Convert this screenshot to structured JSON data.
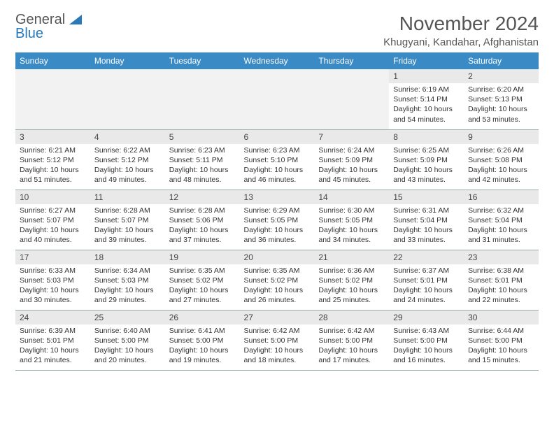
{
  "logo": {
    "word1": "General",
    "word2": "Blue"
  },
  "title": "November 2024",
  "location": "Khugyani, Kandahar, Afghanistan",
  "colors": {
    "header_bg": "#3a8ac6",
    "header_text": "#ffffff",
    "daynum_bg": "#e9e9e9",
    "border": "#99aaaa",
    "accent": "#2a7ab9"
  },
  "weekdays": [
    "Sunday",
    "Monday",
    "Tuesday",
    "Wednesday",
    "Thursday",
    "Friday",
    "Saturday"
  ],
  "weeks": [
    [
      {
        "empty": true
      },
      {
        "empty": true
      },
      {
        "empty": true
      },
      {
        "empty": true
      },
      {
        "empty": true
      },
      {
        "n": "1",
        "sr": "Sunrise: 6:19 AM",
        "ss": "Sunset: 5:14 PM",
        "dl": "Daylight: 10 hours and 54 minutes."
      },
      {
        "n": "2",
        "sr": "Sunrise: 6:20 AM",
        "ss": "Sunset: 5:13 PM",
        "dl": "Daylight: 10 hours and 53 minutes."
      }
    ],
    [
      {
        "n": "3",
        "sr": "Sunrise: 6:21 AM",
        "ss": "Sunset: 5:12 PM",
        "dl": "Daylight: 10 hours and 51 minutes."
      },
      {
        "n": "4",
        "sr": "Sunrise: 6:22 AM",
        "ss": "Sunset: 5:12 PM",
        "dl": "Daylight: 10 hours and 49 minutes."
      },
      {
        "n": "5",
        "sr": "Sunrise: 6:23 AM",
        "ss": "Sunset: 5:11 PM",
        "dl": "Daylight: 10 hours and 48 minutes."
      },
      {
        "n": "6",
        "sr": "Sunrise: 6:23 AM",
        "ss": "Sunset: 5:10 PM",
        "dl": "Daylight: 10 hours and 46 minutes."
      },
      {
        "n": "7",
        "sr": "Sunrise: 6:24 AM",
        "ss": "Sunset: 5:09 PM",
        "dl": "Daylight: 10 hours and 45 minutes."
      },
      {
        "n": "8",
        "sr": "Sunrise: 6:25 AM",
        "ss": "Sunset: 5:09 PM",
        "dl": "Daylight: 10 hours and 43 minutes."
      },
      {
        "n": "9",
        "sr": "Sunrise: 6:26 AM",
        "ss": "Sunset: 5:08 PM",
        "dl": "Daylight: 10 hours and 42 minutes."
      }
    ],
    [
      {
        "n": "10",
        "sr": "Sunrise: 6:27 AM",
        "ss": "Sunset: 5:07 PM",
        "dl": "Daylight: 10 hours and 40 minutes."
      },
      {
        "n": "11",
        "sr": "Sunrise: 6:28 AM",
        "ss": "Sunset: 5:07 PM",
        "dl": "Daylight: 10 hours and 39 minutes."
      },
      {
        "n": "12",
        "sr": "Sunrise: 6:28 AM",
        "ss": "Sunset: 5:06 PM",
        "dl": "Daylight: 10 hours and 37 minutes."
      },
      {
        "n": "13",
        "sr": "Sunrise: 6:29 AM",
        "ss": "Sunset: 5:05 PM",
        "dl": "Daylight: 10 hours and 36 minutes."
      },
      {
        "n": "14",
        "sr": "Sunrise: 6:30 AM",
        "ss": "Sunset: 5:05 PM",
        "dl": "Daylight: 10 hours and 34 minutes."
      },
      {
        "n": "15",
        "sr": "Sunrise: 6:31 AM",
        "ss": "Sunset: 5:04 PM",
        "dl": "Daylight: 10 hours and 33 minutes."
      },
      {
        "n": "16",
        "sr": "Sunrise: 6:32 AM",
        "ss": "Sunset: 5:04 PM",
        "dl": "Daylight: 10 hours and 31 minutes."
      }
    ],
    [
      {
        "n": "17",
        "sr": "Sunrise: 6:33 AM",
        "ss": "Sunset: 5:03 PM",
        "dl": "Daylight: 10 hours and 30 minutes."
      },
      {
        "n": "18",
        "sr": "Sunrise: 6:34 AM",
        "ss": "Sunset: 5:03 PM",
        "dl": "Daylight: 10 hours and 29 minutes."
      },
      {
        "n": "19",
        "sr": "Sunrise: 6:35 AM",
        "ss": "Sunset: 5:02 PM",
        "dl": "Daylight: 10 hours and 27 minutes."
      },
      {
        "n": "20",
        "sr": "Sunrise: 6:35 AM",
        "ss": "Sunset: 5:02 PM",
        "dl": "Daylight: 10 hours and 26 minutes."
      },
      {
        "n": "21",
        "sr": "Sunrise: 6:36 AM",
        "ss": "Sunset: 5:02 PM",
        "dl": "Daylight: 10 hours and 25 minutes."
      },
      {
        "n": "22",
        "sr": "Sunrise: 6:37 AM",
        "ss": "Sunset: 5:01 PM",
        "dl": "Daylight: 10 hours and 24 minutes."
      },
      {
        "n": "23",
        "sr": "Sunrise: 6:38 AM",
        "ss": "Sunset: 5:01 PM",
        "dl": "Daylight: 10 hours and 22 minutes."
      }
    ],
    [
      {
        "n": "24",
        "sr": "Sunrise: 6:39 AM",
        "ss": "Sunset: 5:01 PM",
        "dl": "Daylight: 10 hours and 21 minutes."
      },
      {
        "n": "25",
        "sr": "Sunrise: 6:40 AM",
        "ss": "Sunset: 5:00 PM",
        "dl": "Daylight: 10 hours and 20 minutes."
      },
      {
        "n": "26",
        "sr": "Sunrise: 6:41 AM",
        "ss": "Sunset: 5:00 PM",
        "dl": "Daylight: 10 hours and 19 minutes."
      },
      {
        "n": "27",
        "sr": "Sunrise: 6:42 AM",
        "ss": "Sunset: 5:00 PM",
        "dl": "Daylight: 10 hours and 18 minutes."
      },
      {
        "n": "28",
        "sr": "Sunrise: 6:42 AM",
        "ss": "Sunset: 5:00 PM",
        "dl": "Daylight: 10 hours and 17 minutes."
      },
      {
        "n": "29",
        "sr": "Sunrise: 6:43 AM",
        "ss": "Sunset: 5:00 PM",
        "dl": "Daylight: 10 hours and 16 minutes."
      },
      {
        "n": "30",
        "sr": "Sunrise: 6:44 AM",
        "ss": "Sunset: 5:00 PM",
        "dl": "Daylight: 10 hours and 15 minutes."
      }
    ]
  ]
}
